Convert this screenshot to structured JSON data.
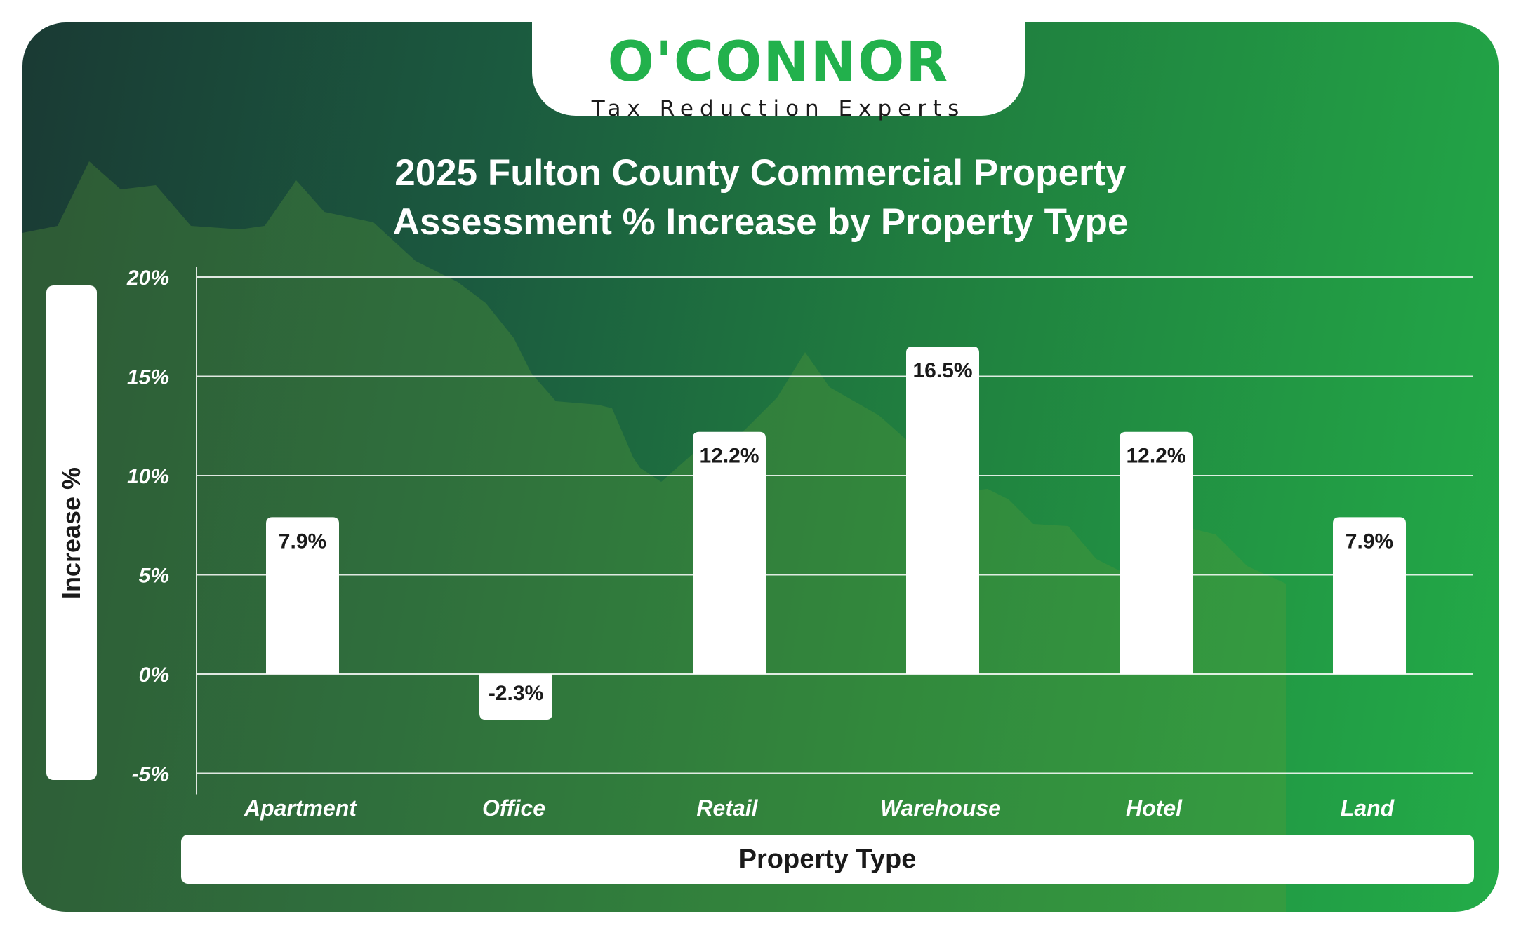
{
  "logo": {
    "name": "O'CONNOR",
    "tagline": "Tax Reduction Experts"
  },
  "colors": {
    "brand_green": "#22b14c",
    "bar": "#ffffff",
    "background_dark": "#1a3a34",
    "background_light": "#23ac48"
  },
  "chart_data": {
    "type": "bar",
    "title_line1": "2025 Fulton County Commercial Property",
    "title_line2": "Assessment % Increase by Property Type",
    "xlabel": "Property Type",
    "ylabel": "Increase %",
    "categories": [
      "Apartment",
      "Office",
      "Retail",
      "Warehouse",
      "Hotel",
      "Land"
    ],
    "values": [
      7.9,
      -2.3,
      12.2,
      16.5,
      12.2,
      7.9
    ],
    "value_labels": [
      "7.9%",
      "-2.3%",
      "12.2%",
      "16.5%",
      "12.2%",
      "7.9%"
    ],
    "yticks": [
      20,
      15,
      10,
      5,
      0,
      -5
    ],
    "ytick_labels": [
      "20%",
      "15%",
      "10%",
      "5%",
      "0%",
      "-5%"
    ],
    "ylim": [
      -5,
      20
    ],
    "grid": true,
    "legend": "none"
  }
}
